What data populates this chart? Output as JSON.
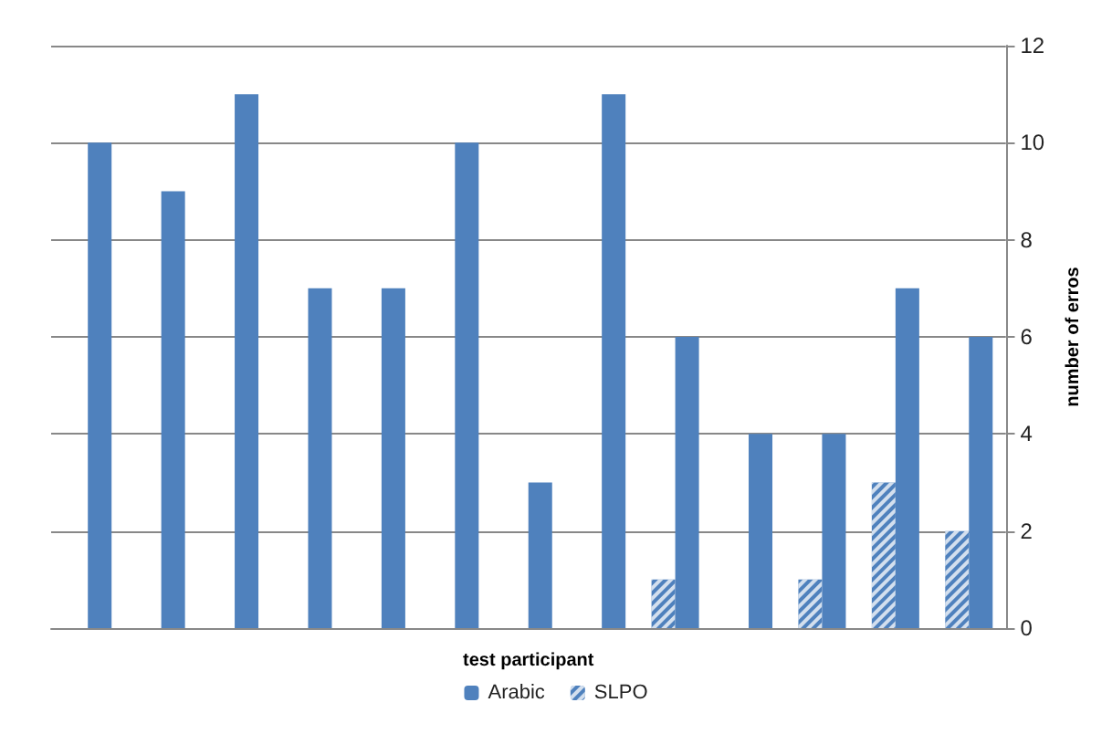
{
  "chart_data": {
    "type": "bar",
    "xlabel": "test participant",
    "ylabel": "number of erros",
    "categories": [
      null,
      null,
      null,
      null,
      null,
      null,
      null,
      null,
      null,
      null,
      null,
      null,
      null
    ],
    "series": [
      {
        "name": "Arabic",
        "color": "#4f81bd",
        "values": [
          10,
          9,
          11,
          7,
          7,
          10,
          3,
          11,
          6,
          4,
          4,
          7,
          6
        ]
      },
      {
        "name": "SLPO",
        "color": "#4f81bd",
        "values": [
          0,
          0,
          0,
          0,
          0,
          0,
          0,
          0,
          1,
          0,
          1,
          3,
          2
        ]
      }
    ],
    "ylim": [
      0,
      12
    ],
    "yticks": [
      0,
      2,
      4,
      6,
      8,
      10,
      12
    ],
    "grid": "y",
    "legend": "bottom"
  }
}
